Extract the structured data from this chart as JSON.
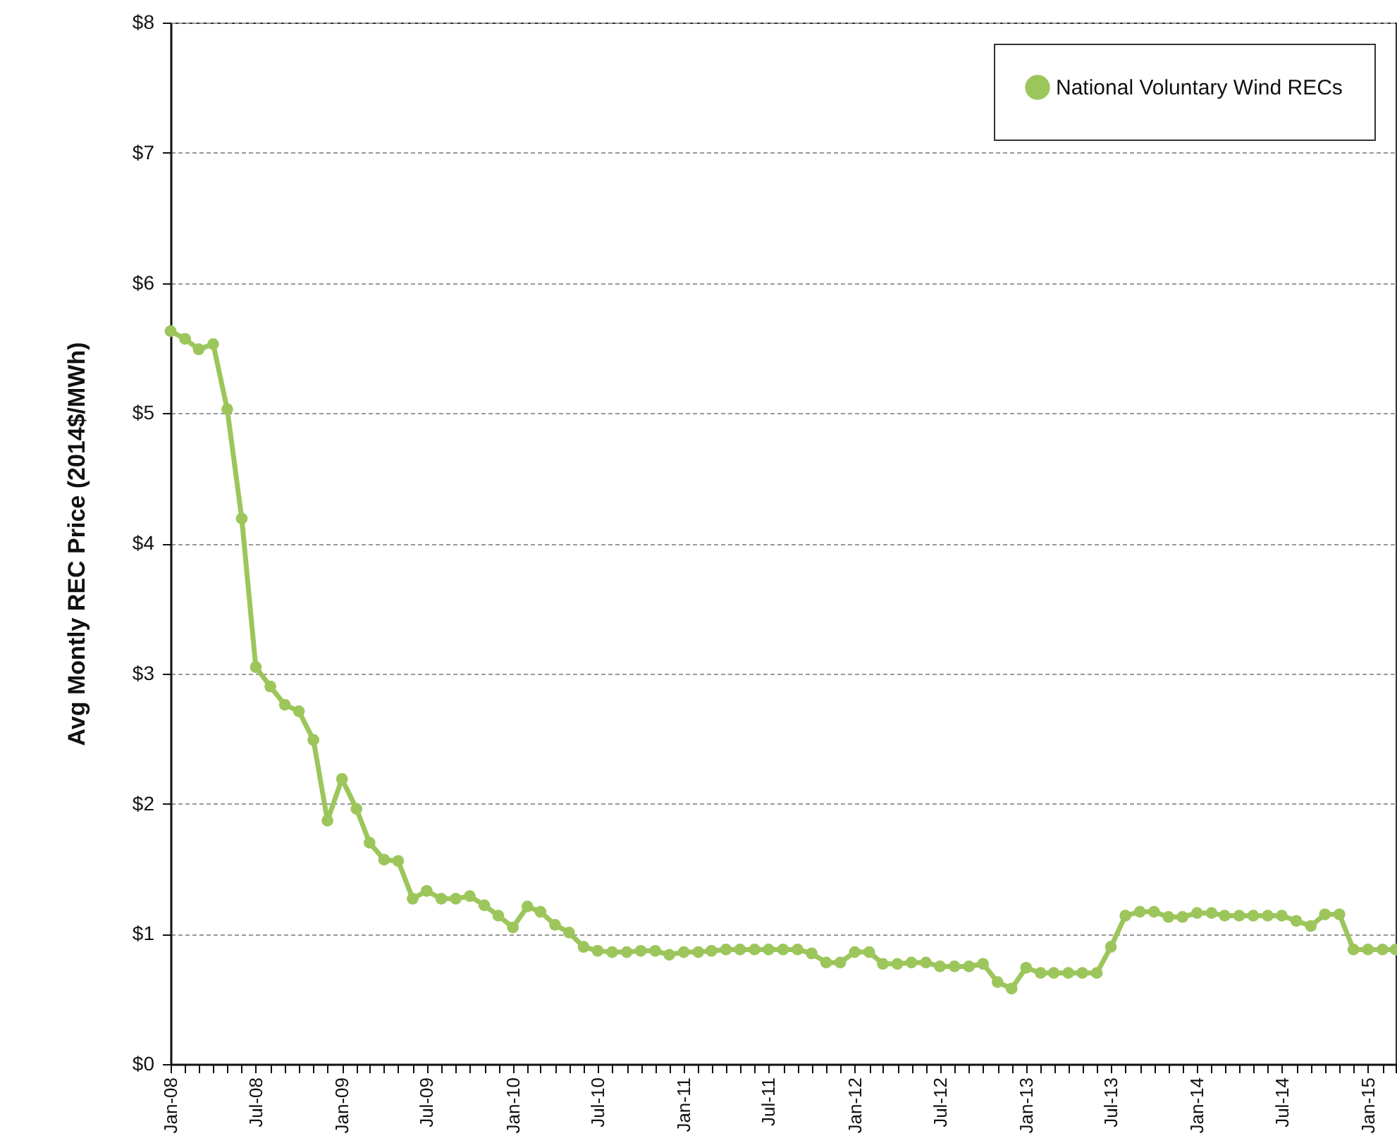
{
  "chart_data": {
    "type": "line",
    "ylabel": "Avg Montly REC Price (2014$/MWh)",
    "x": [
      "2008-01",
      "2008-02",
      "2008-03",
      "2008-04",
      "2008-05",
      "2008-06",
      "2008-07",
      "2008-08",
      "2008-09",
      "2008-10",
      "2008-11",
      "2008-12",
      "2009-01",
      "2009-02",
      "2009-03",
      "2009-04",
      "2009-05",
      "2009-06",
      "2009-07",
      "2009-08",
      "2009-09",
      "2009-10",
      "2009-11",
      "2009-12",
      "2010-01",
      "2010-02",
      "2010-03",
      "2010-04",
      "2010-05",
      "2010-06",
      "2010-07",
      "2010-08",
      "2010-09",
      "2010-10",
      "2010-11",
      "2010-12",
      "2011-01",
      "2011-02",
      "2011-03",
      "2011-04",
      "2011-05",
      "2011-06",
      "2011-07",
      "2011-08",
      "2011-09",
      "2011-10",
      "2011-11",
      "2011-12",
      "2012-01",
      "2012-02",
      "2012-03",
      "2012-04",
      "2012-05",
      "2012-06",
      "2012-07",
      "2012-08",
      "2012-09",
      "2012-10",
      "2012-11",
      "2012-12",
      "2013-01",
      "2013-02",
      "2013-03",
      "2013-04",
      "2013-05",
      "2013-06",
      "2013-07",
      "2013-08",
      "2013-09",
      "2013-10",
      "2013-11",
      "2013-12",
      "2014-01",
      "2014-02",
      "2014-03",
      "2014-04",
      "2014-05",
      "2014-06",
      "2014-07",
      "2014-08",
      "2014-09",
      "2014-10",
      "2014-11",
      "2014-12",
      "2015-01",
      "2015-02",
      "2015-03"
    ],
    "series": [
      {
        "name": "National Voluntary Wind RECs",
        "color": "#9cc65b",
        "values": [
          5.63,
          5.57,
          5.49,
          5.53,
          5.03,
          4.19,
          3.05,
          2.9,
          2.76,
          2.71,
          2.49,
          1.87,
          2.19,
          1.96,
          1.7,
          1.57,
          1.56,
          1.27,
          1.33,
          1.27,
          1.27,
          1.29,
          1.22,
          1.14,
          1.05,
          1.21,
          1.17,
          1.07,
          1.01,
          0.9,
          0.87,
          0.86,
          0.86,
          0.87,
          0.87,
          0.84,
          0.86,
          0.86,
          0.87,
          0.88,
          0.88,
          0.88,
          0.88,
          0.88,
          0.88,
          0.85,
          0.78,
          0.78,
          0.86,
          0.86,
          0.77,
          0.77,
          0.78,
          0.78,
          0.75,
          0.75,
          0.75,
          0.77,
          0.63,
          0.58,
          0.74,
          0.7,
          0.7,
          0.7,
          0.7,
          0.7,
          0.9,
          1.14,
          1.17,
          1.17,
          1.13,
          1.13,
          1.16,
          1.16,
          1.14,
          1.14,
          1.14,
          1.14,
          1.14,
          1.1,
          1.06,
          1.15,
          1.15,
          0.88,
          0.88,
          0.88,
          0.88
        ]
      }
    ],
    "xlim": [
      "2008-01",
      "2015-03"
    ],
    "xticks": [
      {
        "value": "2008-01",
        "label": "Jan-08"
      },
      {
        "value": "2008-02",
        "label": null
      },
      {
        "value": "2008-03",
        "label": null
      },
      {
        "value": "2008-04",
        "label": null
      },
      {
        "value": "2008-05",
        "label": null
      },
      {
        "value": "2008-06",
        "label": null
      },
      {
        "value": "2008-07",
        "label": "Jul-08"
      },
      {
        "value": "2008-08",
        "label": null
      },
      {
        "value": "2008-09",
        "label": null
      },
      {
        "value": "2008-10",
        "label": null
      },
      {
        "value": "2008-11",
        "label": null
      },
      {
        "value": "2008-12",
        "label": null
      },
      {
        "value": "2009-01",
        "label": "Jan-09"
      },
      {
        "value": "2009-02",
        "label": null
      },
      {
        "value": "2009-03",
        "label": null
      },
      {
        "value": "2009-04",
        "label": null
      },
      {
        "value": "2009-05",
        "label": null
      },
      {
        "value": "2009-06",
        "label": null
      },
      {
        "value": "2009-07",
        "label": "Jul-09"
      },
      {
        "value": "2009-08",
        "label": null
      },
      {
        "value": "2009-09",
        "label": null
      },
      {
        "value": "2009-10",
        "label": null
      },
      {
        "value": "2009-11",
        "label": null
      },
      {
        "value": "2009-12",
        "label": null
      },
      {
        "value": "2010-01",
        "label": "Jan-10"
      },
      {
        "value": "2010-02",
        "label": null
      },
      {
        "value": "2010-03",
        "label": null
      },
      {
        "value": "2010-04",
        "label": null
      },
      {
        "value": "2010-05",
        "label": null
      },
      {
        "value": "2010-06",
        "label": null
      },
      {
        "value": "2010-07",
        "label": "Jul-10"
      },
      {
        "value": "2010-08",
        "label": null
      },
      {
        "value": "2010-09",
        "label": null
      },
      {
        "value": "2010-10",
        "label": null
      },
      {
        "value": "2010-11",
        "label": null
      },
      {
        "value": "2010-12",
        "label": null
      },
      {
        "value": "2011-01",
        "label": "Jan-11"
      },
      {
        "value": "2011-02",
        "label": null
      },
      {
        "value": "2011-03",
        "label": null
      },
      {
        "value": "2011-04",
        "label": null
      },
      {
        "value": "2011-05",
        "label": null
      },
      {
        "value": "2011-06",
        "label": null
      },
      {
        "value": "2011-07",
        "label": "Jul-11"
      },
      {
        "value": "2011-08",
        "label": null
      },
      {
        "value": "2011-09",
        "label": null
      },
      {
        "value": "2011-10",
        "label": null
      },
      {
        "value": "2011-11",
        "label": null
      },
      {
        "value": "2011-12",
        "label": null
      },
      {
        "value": "2012-01",
        "label": "Jan-12"
      },
      {
        "value": "2012-02",
        "label": null
      },
      {
        "value": "2012-03",
        "label": null
      },
      {
        "value": "2012-04",
        "label": null
      },
      {
        "value": "2012-05",
        "label": null
      },
      {
        "value": "2012-06",
        "label": null
      },
      {
        "value": "2012-07",
        "label": "Jul-12"
      },
      {
        "value": "2012-08",
        "label": null
      },
      {
        "value": "2012-09",
        "label": null
      },
      {
        "value": "2012-10",
        "label": null
      },
      {
        "value": "2012-11",
        "label": null
      },
      {
        "value": "2012-12",
        "label": null
      },
      {
        "value": "2013-01",
        "label": "Jan-13"
      },
      {
        "value": "2013-02",
        "label": null
      },
      {
        "value": "2013-03",
        "label": null
      },
      {
        "value": "2013-04",
        "label": null
      },
      {
        "value": "2013-05",
        "label": null
      },
      {
        "value": "2013-06",
        "label": null
      },
      {
        "value": "2013-07",
        "label": "Jul-13"
      },
      {
        "value": "2013-08",
        "label": null
      },
      {
        "value": "2013-09",
        "label": null
      },
      {
        "value": "2013-10",
        "label": null
      },
      {
        "value": "2013-11",
        "label": null
      },
      {
        "value": "2013-12",
        "label": null
      },
      {
        "value": "2014-01",
        "label": "Jan-14"
      },
      {
        "value": "2014-02",
        "label": null
      },
      {
        "value": "2014-03",
        "label": null
      },
      {
        "value": "2014-04",
        "label": null
      },
      {
        "value": "2014-05",
        "label": null
      },
      {
        "value": "2014-06",
        "label": null
      },
      {
        "value": "2014-07",
        "label": "Jul-14"
      },
      {
        "value": "2014-08",
        "label": null
      },
      {
        "value": "2014-09",
        "label": null
      },
      {
        "value": "2014-10",
        "label": null
      },
      {
        "value": "2014-11",
        "label": null
      },
      {
        "value": "2014-12",
        "label": null
      },
      {
        "value": "2015-01",
        "label": "Jan-15"
      },
      {
        "value": "2015-02",
        "label": null
      },
      {
        "value": "2015-03",
        "label": null
      }
    ],
    "ylim": [
      0,
      8
    ],
    "yticks": [
      {
        "value": 0,
        "label": "$0"
      },
      {
        "value": 1,
        "label": "$1"
      },
      {
        "value": 2,
        "label": "$2"
      },
      {
        "value": 3,
        "label": "$3"
      },
      {
        "value": 4,
        "label": "$4"
      },
      {
        "value": 5,
        "label": "$5"
      },
      {
        "value": 6,
        "label": "$6"
      },
      {
        "value": 7,
        "label": "$7"
      },
      {
        "value": 8,
        "label": "$8"
      }
    ],
    "grid": "y",
    "legend": "top right",
    "marker": "circle",
    "line_style": "solid"
  }
}
